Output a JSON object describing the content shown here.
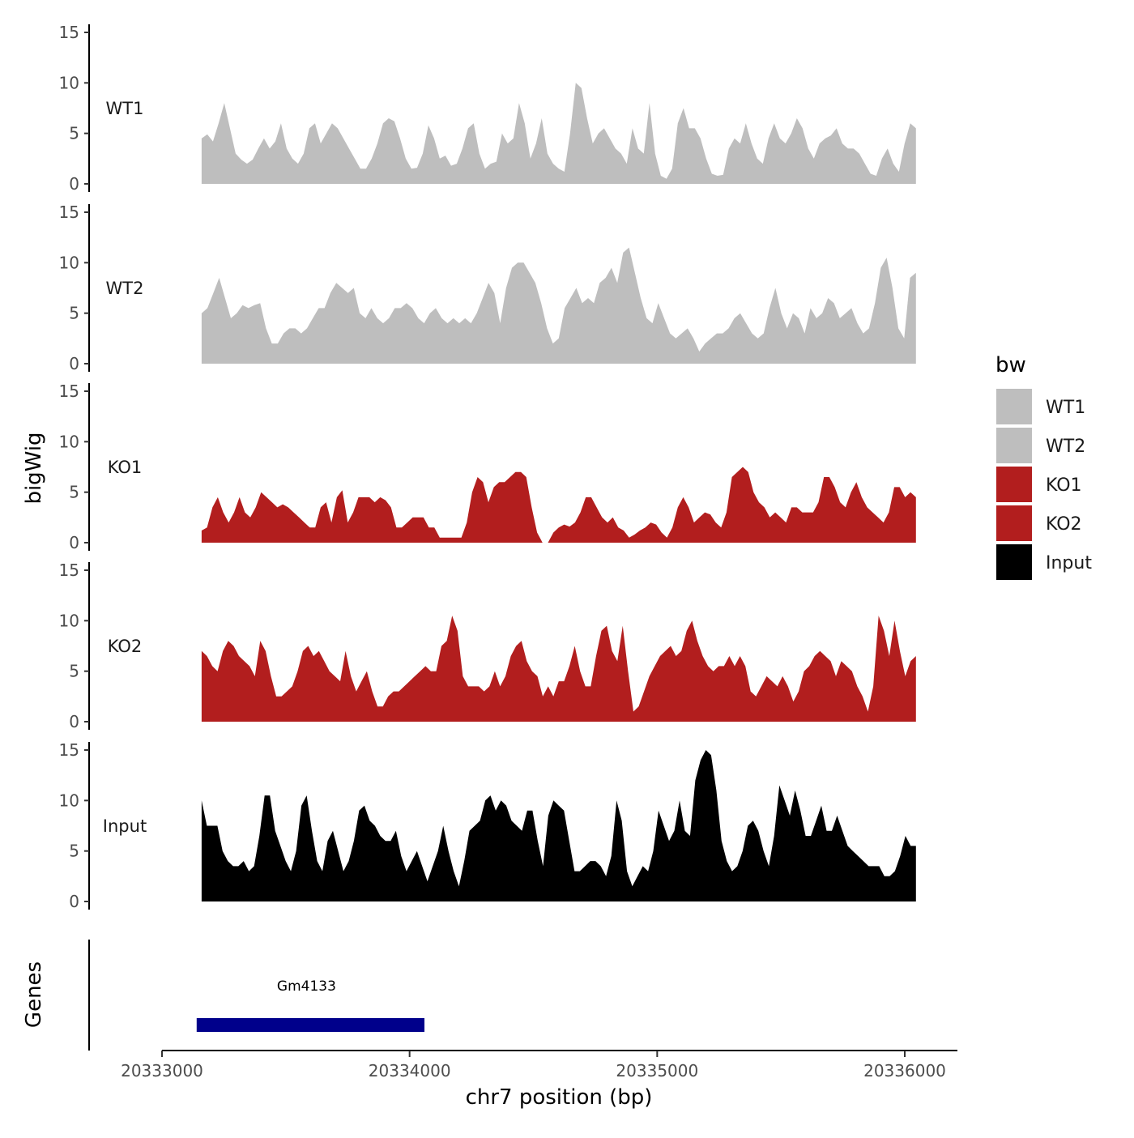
{
  "chart_data": {
    "type": "area",
    "title": "",
    "ylabel": "bigWig",
    "xlabel": "chr7 position (bp)",
    "xlim": [
      20332700,
      20336250
    ],
    "x_ticks": [
      20333000,
      20334000,
      20335000,
      20336000
    ],
    "x_tick_labels": [
      "20333000",
      "20334000",
      "20335000",
      "20336000"
    ],
    "ylim": [
      0,
      15
    ],
    "y_ticks": [
      0,
      5,
      10,
      15
    ],
    "y_tick_labels": [
      "0",
      "5",
      "10",
      "15"
    ],
    "x_start": 20333160,
    "x_end": 20336045,
    "legend": {
      "title": "bw",
      "position": "right",
      "entries": [
        {
          "label": "WT1",
          "color": "#bebebe"
        },
        {
          "label": "WT2",
          "color": "#bebebe"
        },
        {
          "label": "KO1",
          "color": "#b21e1e"
        },
        {
          "label": "KO2",
          "color": "#b21e1e"
        },
        {
          "label": "Input",
          "color": "#000000"
        }
      ]
    },
    "series": [
      {
        "name": "WT1",
        "color": "#bebebe",
        "values": [
          4.5,
          4.9,
          4.2,
          6.0,
          8.0,
          5.5,
          3.0,
          2.4,
          2.0,
          2.4,
          3.5,
          4.5,
          3.5,
          4.2,
          6.0,
          3.5,
          2.5,
          2.0,
          3.0,
          5.5,
          6.0,
          4.0,
          5.0,
          6.0,
          5.5,
          4.5,
          3.5,
          2.5,
          1.5,
          1.5,
          2.5,
          4.0,
          6.0,
          6.5,
          6.2,
          4.5,
          2.5,
          1.5,
          1.6,
          3.0,
          5.8,
          4.5,
          2.5,
          2.8,
          1.8,
          2.0,
          3.5,
          5.5,
          6.0,
          3.0,
          1.5,
          2.0,
          2.2,
          5.0,
          4.0,
          4.5,
          8.0,
          6.0,
          2.5,
          4.0,
          6.5,
          3.0,
          2.0,
          1.5,
          1.2,
          5.0,
          10.0,
          9.5,
          6.5,
          4.0,
          5.0,
          5.5,
          4.5,
          3.5,
          3.0,
          2.0,
          5.5,
          3.5,
          3.0,
          8.0,
          3.0,
          0.8,
          0.5,
          1.5,
          6.0,
          7.5,
          5.5,
          5.5,
          4.5,
          2.5,
          1.0,
          0.8,
          0.9,
          3.5,
          4.5,
          4.0,
          6.0,
          4.0,
          2.5,
          2.0,
          4.5,
          6.0,
          4.5,
          4.0,
          5.0,
          6.5,
          5.5,
          3.5,
          2.5,
          4.0,
          4.5,
          4.8,
          5.5,
          4.0,
          3.5,
          3.5,
          3.0,
          2.0,
          1.0,
          0.8,
          2.5,
          3.5,
          2.0,
          1.2,
          4.0,
          6.0,
          5.5
        ]
      },
      {
        "name": "WT2",
        "color": "#bebebe",
        "values": [
          5.0,
          5.5,
          7.0,
          8.5,
          6.5,
          4.5,
          5.0,
          5.8,
          5.5,
          5.8,
          6.0,
          3.5,
          2.0,
          2.0,
          3.0,
          3.5,
          3.5,
          3.0,
          3.5,
          4.5,
          5.5,
          5.5,
          7.0,
          8.0,
          7.5,
          7.0,
          7.5,
          5.0,
          4.5,
          5.5,
          4.5,
          4.0,
          4.5,
          5.5,
          5.5,
          6.0,
          5.5,
          4.5,
          4.0,
          5.0,
          5.5,
          4.5,
          4.0,
          4.5,
          4.0,
          4.5,
          4.0,
          5.0,
          6.5,
          8.0,
          7.0,
          4.0,
          7.5,
          9.5,
          10.0,
          10.0,
          9.0,
          8.0,
          6.0,
          3.5,
          2.0,
          2.5,
          5.5,
          6.5,
          7.5,
          6.0,
          6.5,
          6.0,
          8.0,
          8.5,
          9.5,
          8.0,
          11.0,
          11.5,
          9.0,
          6.5,
          4.5,
          4.0,
          6.0,
          4.5,
          3.0,
          2.5,
          3.0,
          3.5,
          2.5,
          1.2,
          2.0,
          2.5,
          3.0,
          3.0,
          3.5,
          4.5,
          5.0,
          4.0,
          3.0,
          2.5,
          3.0,
          5.5,
          7.5,
          5.0,
          3.5,
          5.0,
          4.5,
          3.0,
          5.5,
          4.5,
          5.0,
          6.5,
          6.0,
          4.5,
          5.0,
          5.5,
          4.0,
          3.0,
          3.5,
          6.0,
          9.5,
          10.5,
          7.5,
          3.5,
          2.5,
          8.5,
          9.0
        ]
      },
      {
        "name": "KO1",
        "color": "#b21e1e",
        "values": [
          1.2,
          1.5,
          3.5,
          4.5,
          3.0,
          2.0,
          3.0,
          4.5,
          3.0,
          2.5,
          3.5,
          5.0,
          4.5,
          4.0,
          3.5,
          3.8,
          3.5,
          3.0,
          2.5,
          2.0,
          1.5,
          1.5,
          3.5,
          4.0,
          2.0,
          4.5,
          5.2,
          2.0,
          3.0,
          4.5,
          4.5,
          4.5,
          4.0,
          4.5,
          4.2,
          3.5,
          1.5,
          1.5,
          2.0,
          2.5,
          2.5,
          2.5,
          1.5,
          1.5,
          0.5,
          0.5,
          0.5,
          0.5,
          0.5,
          2.0,
          5.0,
          6.5,
          6.0,
          4.0,
          5.5,
          6.0,
          6.0,
          6.5,
          7.0,
          7.0,
          6.5,
          3.5,
          1.0,
          0.0,
          0.0,
          1.0,
          1.5,
          1.8,
          1.6,
          2.0,
          3.0,
          4.5,
          4.5,
          3.5,
          2.5,
          2.0,
          2.5,
          1.5,
          1.2,
          0.5,
          0.8,
          1.2,
          1.5,
          2.0,
          1.8,
          1.0,
          0.5,
          1.5,
          3.5,
          4.5,
          3.5,
          2.0,
          2.5,
          3.0,
          2.8,
          2.0,
          1.5,
          3.0,
          6.5,
          7.0,
          7.5,
          7.0,
          5.0,
          4.0,
          3.5,
          2.5,
          3.0,
          2.5,
          2.0,
          3.5,
          3.5,
          3.0,
          3.0,
          3.0,
          4.0,
          6.5,
          6.5,
          5.5,
          4.0,
          3.5,
          5.0,
          6.0,
          4.5,
          3.5,
          3.0,
          2.5,
          2.0,
          3.0,
          5.5,
          5.5,
          4.5,
          5.0,
          4.5
        ]
      },
      {
        "name": "KO2",
        "color": "#b21e1e",
        "values": [
          7.0,
          6.5,
          5.5,
          5.0,
          7.0,
          8.0,
          7.5,
          6.5,
          6.0,
          5.5,
          4.5,
          8.0,
          7.0,
          4.5,
          2.5,
          2.5,
          3.0,
          3.5,
          5.0,
          7.0,
          7.5,
          6.5,
          7.0,
          6.0,
          5.0,
          4.5,
          4.0,
          7.0,
          4.5,
          3.0,
          4.0,
          5.0,
          3.0,
          1.5,
          1.5,
          2.5,
          3.0,
          3.0,
          3.5,
          4.0,
          4.5,
          5.0,
          5.5,
          5.0,
          5.0,
          7.5,
          8.0,
          10.5,
          9.0,
          4.5,
          3.5,
          3.5,
          3.5,
          3.0,
          3.5,
          5.0,
          3.5,
          4.5,
          6.5,
          7.5,
          8.0,
          6.0,
          5.0,
          4.5,
          2.5,
          3.5,
          2.5,
          4.0,
          4.0,
          5.5,
          7.5,
          5.0,
          3.5,
          3.5,
          6.5,
          9.0,
          9.5,
          7.0,
          6.0,
          9.5,
          5.0,
          1.0,
          1.5,
          3.0,
          4.5,
          5.5,
          6.5,
          7.0,
          7.5,
          6.5,
          7.0,
          9.0,
          10.0,
          8.0,
          6.5,
          5.5,
          5.0,
          5.5,
          5.5,
          6.5,
          5.5,
          6.5,
          5.5,
          3.0,
          2.5,
          3.5,
          4.5,
          4.0,
          3.5,
          4.5,
          3.5,
          2.0,
          3.0,
          5.0,
          5.5,
          6.5,
          7.0,
          6.5,
          6.0,
          4.5,
          6.0,
          5.5,
          5.0,
          3.5,
          2.5,
          1.0,
          3.5,
          10.5,
          9.0,
          6.5,
          10.0,
          7.0,
          4.5,
          6.0,
          6.5
        ]
      },
      {
        "name": "Input",
        "color": "#000000",
        "values": [
          10.0,
          7.5,
          7.5,
          7.5,
          5.0,
          4.0,
          3.5,
          3.5,
          4.0,
          3.0,
          3.5,
          6.5,
          10.5,
          10.5,
          7.0,
          5.5,
          4.0,
          3.0,
          5.0,
          9.5,
          10.5,
          7.0,
          4.0,
          3.0,
          6.0,
          7.0,
          5.0,
          3.0,
          4.0,
          6.0,
          9.0,
          9.5,
          8.0,
          7.5,
          6.5,
          6.0,
          6.0,
          7.0,
          4.5,
          3.0,
          4.0,
          5.0,
          3.5,
          2.0,
          3.5,
          5.0,
          7.5,
          5.0,
          3.0,
          1.5,
          4.0,
          7.0,
          7.5,
          8.0,
          10.0,
          10.5,
          9.0,
          10.0,
          9.5,
          8.0,
          7.5,
          7.0,
          9.0,
          9.0,
          6.0,
          3.5,
          8.5,
          10.0,
          9.5,
          9.0,
          6.0,
          3.0,
          3.0,
          3.5,
          4.0,
          4.0,
          3.5,
          2.5,
          4.5,
          10.0,
          8.0,
          3.0,
          1.5,
          2.5,
          3.5,
          3.0,
          5.0,
          9.0,
          7.5,
          6.0,
          7.0,
          10.0,
          7.0,
          6.5,
          12.0,
          14.0,
          15.0,
          14.5,
          11.0,
          6.0,
          4.0,
          3.0,
          3.5,
          5.0,
          7.5,
          8.0,
          7.0,
          5.0,
          3.5,
          6.5,
          11.5,
          10.0,
          8.5,
          11.0,
          9.0,
          6.5,
          6.5,
          8.0,
          9.5,
          7.0,
          7.0,
          8.5,
          7.0,
          5.5,
          5.0,
          4.5,
          4.0,
          3.5,
          3.5,
          3.5,
          2.5,
          2.5,
          3.0,
          4.5,
          6.5,
          5.5,
          5.5
        ]
      }
    ],
    "tracks": [
      "WT1",
      "WT2",
      "KO1",
      "KO2",
      "Input"
    ],
    "genes_panel": {
      "ylabel": "Genes",
      "genes": [
        {
          "name": "Gm4133",
          "start": 20333140,
          "end": 20334060,
          "color": "#00008b"
        }
      ]
    }
  }
}
